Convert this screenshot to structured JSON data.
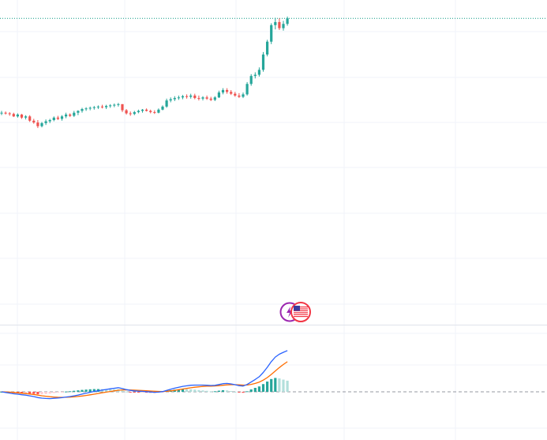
{
  "colors": {
    "up": "#26a69a",
    "down": "#ef5350",
    "grid": "#f0f3fa",
    "separator": "#e0e3eb",
    "price_line": "#089981",
    "macd_line": "#2962ff",
    "signal_line": "#ff6d00",
    "zero_line": "#9598a1",
    "hist_up_strong": "#26a69a",
    "hist_up_weak": "#b2dfdb",
    "hist_down_strong": "#ff5252",
    "hist_down_weak": "#ffcdd2",
    "marker_ring": "#9c27b0",
    "marker_flag_ring": "#f23645"
  },
  "event_markers": [
    {
      "icon": "lightning-icon"
    },
    {
      "icon": "us-flag-icon"
    }
  ],
  "chart_data": [
    {
      "type": "candlestick",
      "title": "",
      "last_price": 100.0,
      "price_line": "dotted",
      "grid": true,
      "ylim": [
        50,
        103
      ],
      "candles": [
        [
          84.6,
          84.9,
          84.2,
          84.6
        ],
        [
          84.6,
          84.8,
          84.3,
          84.5
        ],
        [
          84.5,
          84.7,
          84.1,
          84.4
        ],
        [
          84.4,
          84.6,
          83.9,
          84.0
        ],
        [
          84.0,
          84.5,
          83.8,
          84.3
        ],
        [
          84.3,
          84.4,
          83.6,
          83.8
        ],
        [
          83.8,
          84.2,
          83.5,
          84.0
        ],
        [
          84.0,
          84.2,
          83.1,
          83.3
        ],
        [
          83.3,
          83.6,
          82.8,
          83.0
        ],
        [
          83.0,
          83.4,
          82.1,
          82.4
        ],
        [
          82.4,
          83.1,
          82.2,
          82.9
        ],
        [
          82.9,
          83.5,
          82.6,
          83.2
        ],
        [
          83.2,
          83.6,
          82.9,
          83.4
        ],
        [
          83.4,
          84.0,
          83.2,
          83.8
        ],
        [
          83.8,
          84.1,
          83.4,
          83.6
        ],
        [
          83.6,
          84.2,
          83.3,
          84.0
        ],
        [
          84.0,
          84.6,
          83.7,
          84.3
        ],
        [
          84.3,
          84.5,
          83.9,
          84.1
        ],
        [
          84.1,
          84.9,
          83.9,
          84.6
        ],
        [
          84.6,
          85.0,
          84.2,
          84.9
        ],
        [
          84.9,
          85.4,
          84.6,
          85.2
        ],
        [
          85.2,
          85.5,
          84.9,
          85.3
        ],
        [
          85.3,
          85.6,
          85.0,
          85.4
        ],
        [
          85.4,
          85.7,
          85.1,
          85.5
        ],
        [
          85.5,
          85.8,
          85.2,
          85.6
        ],
        [
          85.6,
          85.9,
          85.3,
          85.5
        ],
        [
          85.5,
          85.9,
          85.2,
          85.7
        ],
        [
          85.7,
          86.0,
          85.4,
          85.8
        ],
        [
          85.8,
          86.1,
          85.5,
          85.9
        ],
        [
          85.9,
          86.2,
          85.6,
          86.0
        ],
        [
          86.0,
          86.0,
          84.7,
          85.0
        ],
        [
          85.0,
          85.2,
          84.3,
          84.5
        ],
        [
          84.5,
          84.8,
          84.1,
          84.4
        ],
        [
          84.4,
          84.9,
          84.2,
          84.7
        ],
        [
          84.7,
          85.1,
          84.5,
          84.9
        ],
        [
          84.9,
          85.2,
          84.6,
          85.1
        ],
        [
          85.1,
          85.3,
          84.8,
          84.9
        ],
        [
          84.9,
          85.1,
          84.5,
          84.7
        ],
        [
          84.7,
          85.0,
          84.4,
          84.6
        ],
        [
          84.6,
          85.3,
          84.5,
          85.1
        ],
        [
          85.1,
          85.8,
          85.0,
          85.6
        ],
        [
          85.6,
          86.9,
          85.4,
          86.6
        ],
        [
          86.6,
          87.1,
          86.3,
          86.8
        ],
        [
          86.8,
          87.3,
          86.5,
          87.0
        ],
        [
          87.0,
          87.4,
          86.7,
          87.1
        ],
        [
          87.1,
          87.5,
          86.8,
          87.3
        ],
        [
          87.3,
          87.6,
          86.9,
          87.2
        ],
        [
          87.2,
          87.7,
          86.9,
          87.4
        ],
        [
          87.4,
          87.7,
          86.8,
          87.0
        ],
        [
          87.0,
          87.4,
          86.6,
          86.9
        ],
        [
          86.9,
          87.3,
          86.6,
          87.1
        ],
        [
          87.1,
          87.4,
          86.7,
          86.9
        ],
        [
          86.9,
          87.2,
          86.5,
          86.7
        ],
        [
          86.7,
          87.3,
          86.5,
          87.1
        ],
        [
          87.1,
          88.2,
          87.0,
          87.9
        ],
        [
          87.9,
          88.6,
          87.6,
          88.3
        ],
        [
          88.3,
          88.6,
          87.7,
          88.0
        ],
        [
          88.0,
          88.3,
          87.5,
          87.7
        ],
        [
          87.7,
          88.0,
          87.2,
          87.4
        ],
        [
          87.4,
          87.8,
          87.0,
          87.2
        ],
        [
          87.2,
          87.9,
          87.0,
          87.6
        ],
        [
          87.6,
          89.6,
          87.4,
          89.3
        ],
        [
          89.3,
          90.9,
          89.0,
          90.6
        ],
        [
          90.6,
          91.2,
          90.2,
          90.8
        ],
        [
          90.8,
          92.0,
          90.5,
          91.6
        ],
        [
          91.6,
          94.5,
          91.3,
          94.1
        ],
        [
          94.1,
          96.5,
          93.8,
          96.2
        ],
        [
          96.2,
          99.2,
          95.8,
          98.9
        ],
        [
          98.9,
          100.1,
          98.2,
          99.4
        ],
        [
          99.4,
          100.0,
          98.1,
          98.4
        ],
        [
          98.4,
          99.6,
          98.0,
          99.1
        ],
        [
          99.1,
          100.3,
          98.8,
          100.0
        ]
      ]
    },
    {
      "type": "macd",
      "grid": true,
      "ylim": [
        -6,
        14
      ],
      "macd": [
        0.0,
        -0.21,
        -0.4,
        -0.62,
        -0.75,
        -0.92,
        -1.04,
        -1.27,
        -1.51,
        -1.82,
        -2.0,
        -2.1,
        -2.14,
        -2.05,
        -1.98,
        -1.84,
        -1.64,
        -1.5,
        -1.27,
        -1.02,
        -0.73,
        -0.45,
        -0.15,
        0.12,
        0.35,
        0.55,
        0.76,
        0.95,
        1.12,
        1.3,
        1.02,
        0.71,
        0.44,
        0.29,
        0.2,
        0.16,
        0.06,
        -0.05,
        -0.15,
        -0.1,
        0.07,
        0.43,
        0.81,
        1.16,
        1.45,
        1.73,
        1.9,
        2.07,
        2.13,
        2.12,
        2.13,
        2.08,
        1.99,
        2.04,
        2.31,
        2.58,
        2.64,
        2.5,
        2.25,
        1.96,
        1.82,
        2.33,
        3.11,
        3.91,
        4.78,
        6.13,
        7.74,
        9.55,
        11.0,
        11.9,
        12.5,
        13.04
      ],
      "signal": [
        0.0,
        -0.04,
        -0.11,
        -0.21,
        -0.32,
        -0.44,
        -0.56,
        -0.7,
        -0.86,
        -1.05,
        -1.24,
        -1.41,
        -1.56,
        -1.66,
        -1.73,
        -1.75,
        -1.73,
        -1.68,
        -1.6,
        -1.48,
        -1.33,
        -1.15,
        -0.95,
        -0.74,
        -0.52,
        -0.31,
        -0.1,
        0.11,
        0.31,
        0.51,
        0.61,
        0.63,
        0.59,
        0.53,
        0.46,
        0.4,
        0.33,
        0.25,
        0.17,
        0.12,
        0.11,
        0.17,
        0.3,
        0.47,
        0.67,
        0.88,
        1.08,
        1.28,
        1.45,
        1.58,
        1.69,
        1.77,
        1.81,
        1.86,
        1.95,
        2.08,
        2.19,
        2.25,
        2.25,
        2.19,
        2.12,
        2.16,
        2.35,
        2.66,
        3.08,
        3.69,
        4.5,
        5.51,
        6.61,
        7.67,
        8.64,
        9.52
      ]
    }
  ]
}
